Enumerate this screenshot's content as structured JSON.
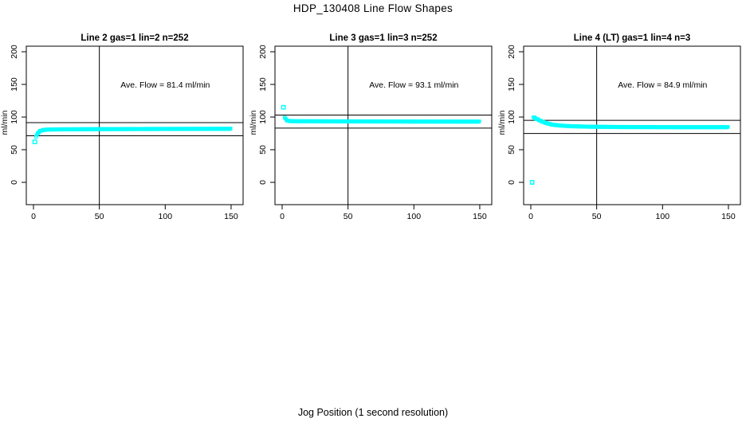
{
  "figure": {
    "title": "HDP_130408  Line Flow Shapes",
    "xlabel": "Jog Position (1 second resolution)",
    "background": "#FFFFFF",
    "marker_color": "#00FFFF",
    "axis_color": "#000000"
  },
  "chart_data": [
    {
      "type": "scatter",
      "title": "Line 2 gas=1 lin=2 n=252",
      "ylabel": "ml/min",
      "annotation": "Ave. Flow =  81.4  ml/min",
      "ave_flow_ml_min": 81.4,
      "n": 252,
      "xticks": [
        0,
        50,
        100,
        150
      ],
      "yticks": [
        0,
        50,
        100,
        150,
        200
      ],
      "xlim": [
        -5.5,
        159
      ],
      "ylim": [
        -34,
        208
      ],
      "grid": false,
      "hlines": [
        91.4,
        71.4
      ],
      "vline": 50,
      "annotation_xy": [
        100,
        150
      ],
      "outlier_points": [
        [
          1,
          62
        ]
      ],
      "band_anchor_points": [
        [
          2,
          70
        ],
        [
          3,
          74
        ],
        [
          4,
          77
        ],
        [
          5,
          78.5
        ],
        [
          7,
          80
        ],
        [
          10,
          80.8
        ],
        [
          20,
          81.2
        ],
        [
          50,
          81.5
        ],
        [
          100,
          81.8
        ],
        [
          150,
          82
        ]
      ]
    },
    {
      "type": "scatter",
      "title": "Line 3 gas=1 lin=3 n=252",
      "ylabel": "ml/min",
      "annotation": "Ave. Flow =  93.1  ml/min",
      "ave_flow_ml_min": 93.1,
      "n": 252,
      "xticks": [
        0,
        50,
        100,
        150
      ],
      "yticks": [
        0,
        50,
        100,
        150,
        200
      ],
      "xlim": [
        -5.5,
        159
      ],
      "ylim": [
        -34,
        208
      ],
      "grid": false,
      "hlines": [
        103.1,
        83.1
      ],
      "vline": 50,
      "annotation_xy": [
        100,
        150
      ],
      "outlier_points": [
        [
          1,
          115
        ]
      ],
      "band_anchor_points": [
        [
          2,
          99.5
        ],
        [
          3,
          96
        ],
        [
          4,
          94.5
        ],
        [
          6,
          93.8
        ],
        [
          10,
          93.6
        ],
        [
          30,
          93.5
        ],
        [
          60,
          93.3
        ],
        [
          100,
          93.1
        ],
        [
          150,
          93
        ]
      ]
    },
    {
      "type": "scatter",
      "title": "Line 4 (LT) gas=1 lin=4 n=3",
      "ylabel": "ml/min",
      "annotation": "Ave. Flow =  84.9  ml/min",
      "ave_flow_ml_min": 84.9,
      "n": 3,
      "xticks": [
        0,
        50,
        100,
        150
      ],
      "yticks": [
        0,
        50,
        100,
        150,
        200
      ],
      "xlim": [
        -5.5,
        159
      ],
      "ylim": [
        -34,
        208
      ],
      "grid": false,
      "hlines": [
        94.9,
        74.9
      ],
      "vline": 50,
      "annotation_xy": [
        100,
        150
      ],
      "outlier_points": [
        [
          1,
          0
        ]
      ],
      "band_anchor_points": [
        [
          2,
          100
        ],
        [
          3,
          99
        ],
        [
          4,
          97.5
        ],
        [
          6,
          95.5
        ],
        [
          8,
          93.5
        ],
        [
          12,
          90.5
        ],
        [
          16,
          88.5
        ],
        [
          22,
          87
        ],
        [
          30,
          86
        ],
        [
          45,
          85.2
        ],
        [
          70,
          84.7
        ],
        [
          110,
          84.5
        ],
        [
          150,
          84.5
        ]
      ]
    }
  ]
}
